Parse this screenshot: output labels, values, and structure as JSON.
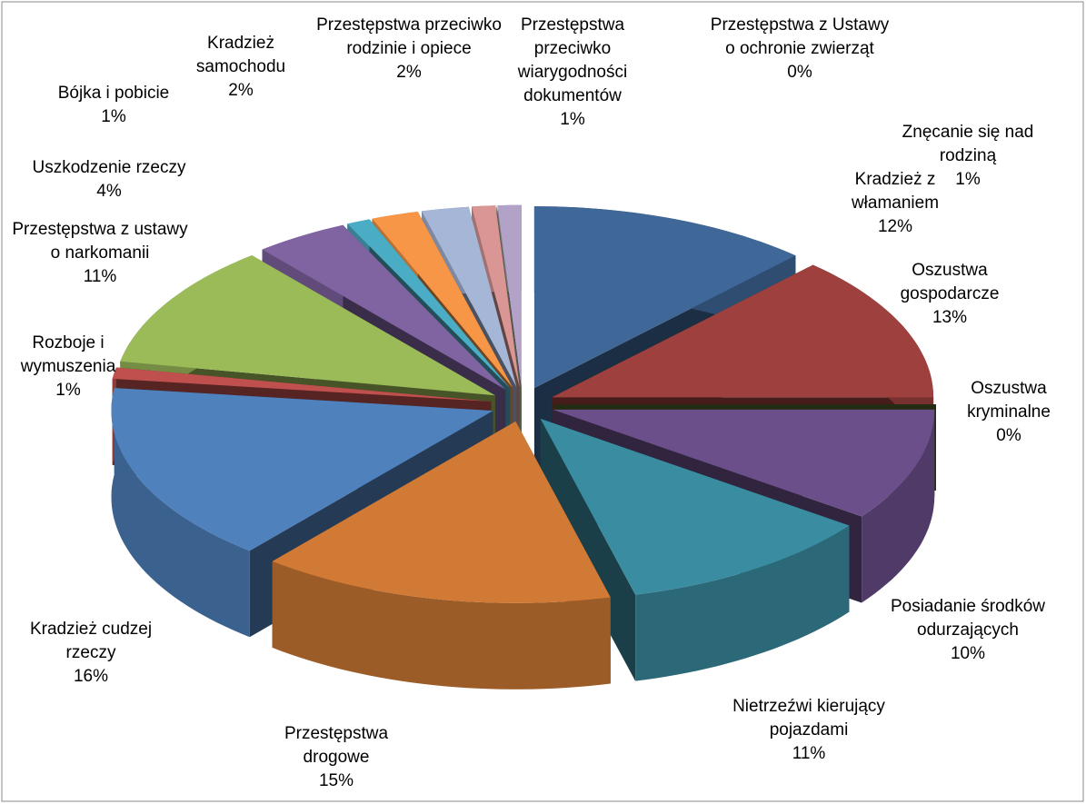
{
  "chart_data": {
    "type": "pie3d",
    "categories": [
      "Kradzież z włamaniem",
      "Oszustwa gospodarcze",
      "Oszustwa kryminalne",
      "Posiadanie środków odurzających",
      "Nietrzeźwi kierujący pojazdami",
      "Przestępstwa drogowe",
      "Kradzież cudzej rzeczy",
      "Rozboje i wymuszenia",
      "Przestępstwa z ustawy o narkomanii",
      "Uszkodzenie rzeczy",
      "Bójka i pobicie",
      "Kradzież samochodu",
      "Przestępstwa przeciwko rodzinie i opiece",
      "Przestępstwa przeciwko wiarygodności dokumentów",
      "Przestępstwa z Ustawy o ochronie zwierząt",
      "Znęcanie się nad rodziną"
    ],
    "values": [
      12,
      13,
      0,
      10,
      11,
      15,
      16,
      1,
      11,
      4,
      1,
      2,
      2,
      1,
      0,
      1
    ],
    "value_labels": [
      "12%",
      "13%",
      "0%",
      "10%",
      "11%",
      "15%",
      "16%",
      "1%",
      "11%",
      "4%",
      "1%",
      "2%",
      "2%",
      "1%",
      "0%",
      "1%"
    ],
    "colors": [
      "#3f6797",
      "#9e413e",
      "#4f6228",
      "#6b4f8a",
      "#3a8ca0",
      "#d07a35",
      "#4f81bd",
      "#c0504d",
      "#9bbb59",
      "#8064a2",
      "#4bacc6",
      "#f79646",
      "#a5b6d7",
      "#d99694",
      "#c3d69b",
      "#b3a2c7"
    ]
  }
}
